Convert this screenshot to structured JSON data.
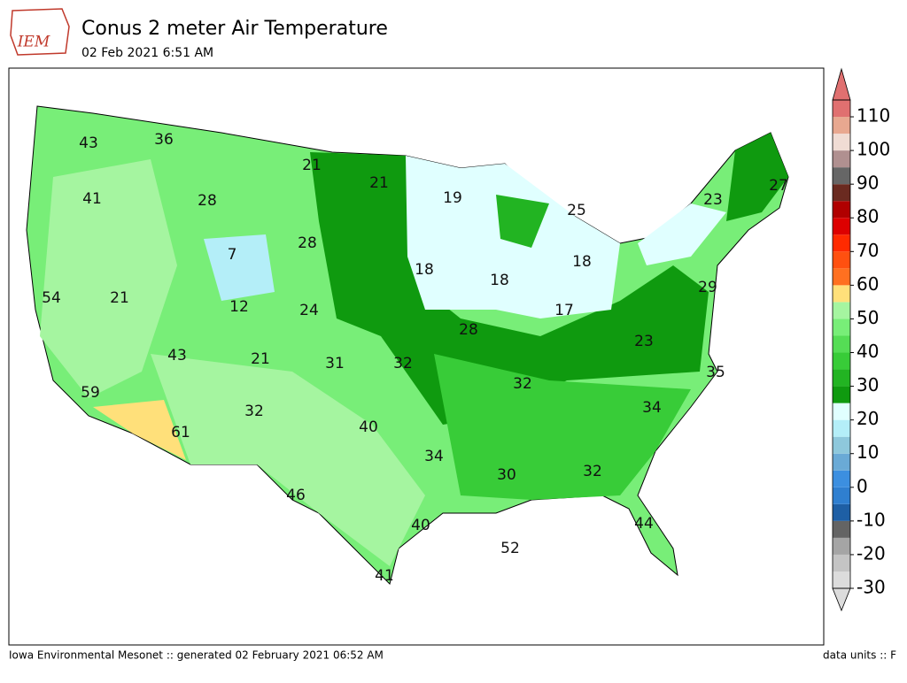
{
  "logo": "IEM",
  "header": {
    "title": "Conus 2 meter Air Temperature",
    "subtitle": "02 Feb 2021 6:51 AM"
  },
  "stations": [
    43,
    36,
    21,
    21,
    19,
    25,
    23,
    27,
    41,
    28,
    28,
    7,
    18,
    18,
    18,
    29,
    54,
    21,
    12,
    24,
    17,
    28,
    23,
    43,
    21,
    31,
    32,
    35,
    59,
    32,
    34,
    32,
    40,
    61,
    34,
    30,
    32,
    46,
    40,
    44,
    52,
    41
  ],
  "colorbar": {
    "lim": [
      -30,
      115
    ],
    "ticks": [
      -30,
      -20,
      -10,
      0,
      10,
      20,
      30,
      40,
      50,
      60,
      70,
      80,
      90,
      100,
      110
    ],
    "colors": [
      "#dcdcdc",
      "#c4c4c4",
      "#a5a5a5",
      "#646464",
      "#1e5fa5",
      "#2f7fd0",
      "#3c8fe0",
      "#6aaad6",
      "#8ec8dc",
      "#b4eef8",
      "#e0ffff",
      "#0f9a0f",
      "#22b422",
      "#38cc38",
      "#55dd55",
      "#78ee78",
      "#a5f5a0",
      "#ffe07a",
      "#ff7020",
      "#ff5010",
      "#ff2a00",
      "#dd0000",
      "#b00000",
      "#6a2a20",
      "#666666",
      "#b09090",
      "#f0dcd4",
      "#e8a890",
      "#e07070"
    ]
  },
  "footer": {
    "left": "Iowa Environmental Mesonet :: generated 02 February 2021 06:52 AM",
    "right": "data units :: F"
  }
}
